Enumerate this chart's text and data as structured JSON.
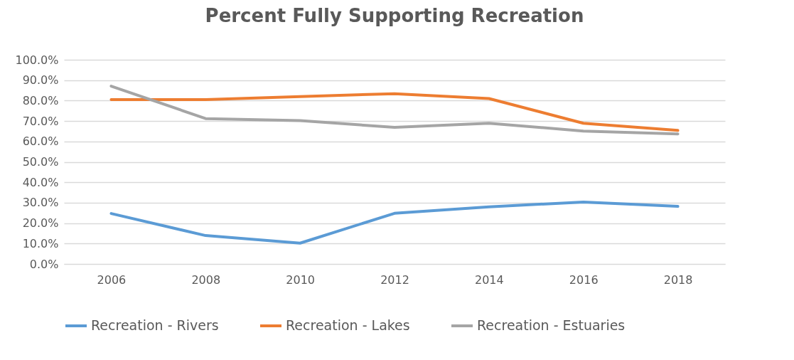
{
  "chart_data": {
    "type": "line",
    "title": "Percent Fully Supporting Recreation",
    "categories": [
      "2006",
      "2008",
      "2010",
      "2012",
      "2014",
      "2016",
      "2018"
    ],
    "series": [
      {
        "name": "Recreation - Rivers",
        "color": "#5b9bd5",
        "values": [
          24.7,
          13.9,
          10.2,
          24.8,
          28.0,
          30.3,
          28.2
        ]
      },
      {
        "name": "Recreation - Lakes",
        "color": "#ed7d31",
        "values": [
          80.5,
          80.5,
          82.0,
          83.4,
          81.0,
          68.9,
          65.4
        ]
      },
      {
        "name": "Recreation - Estuaries",
        "color": "#a5a5a5",
        "values": [
          87.1,
          71.2,
          70.2,
          66.9,
          68.9,
          65.1,
          63.7
        ]
      }
    ],
    "ylim": [
      0,
      100
    ],
    "yticks": [
      {
        "value": 0,
        "label": "0.0%"
      },
      {
        "value": 10,
        "label": "10.0%"
      },
      {
        "value": 20,
        "label": "20.0%"
      },
      {
        "value": 30,
        "label": "30.0%"
      },
      {
        "value": 40,
        "label": "40.0%"
      },
      {
        "value": 50,
        "label": "50.0%"
      },
      {
        "value": 60,
        "label": "60.0%"
      },
      {
        "value": 70,
        "label": "70.0%"
      },
      {
        "value": 80,
        "label": "80.0%"
      },
      {
        "value": 90,
        "label": "90.0%"
      },
      {
        "value": 100,
        "label": "100.0%"
      }
    ],
    "grid": "y",
    "legend": "bottom",
    "marker": "none",
    "line_style": "solid"
  }
}
